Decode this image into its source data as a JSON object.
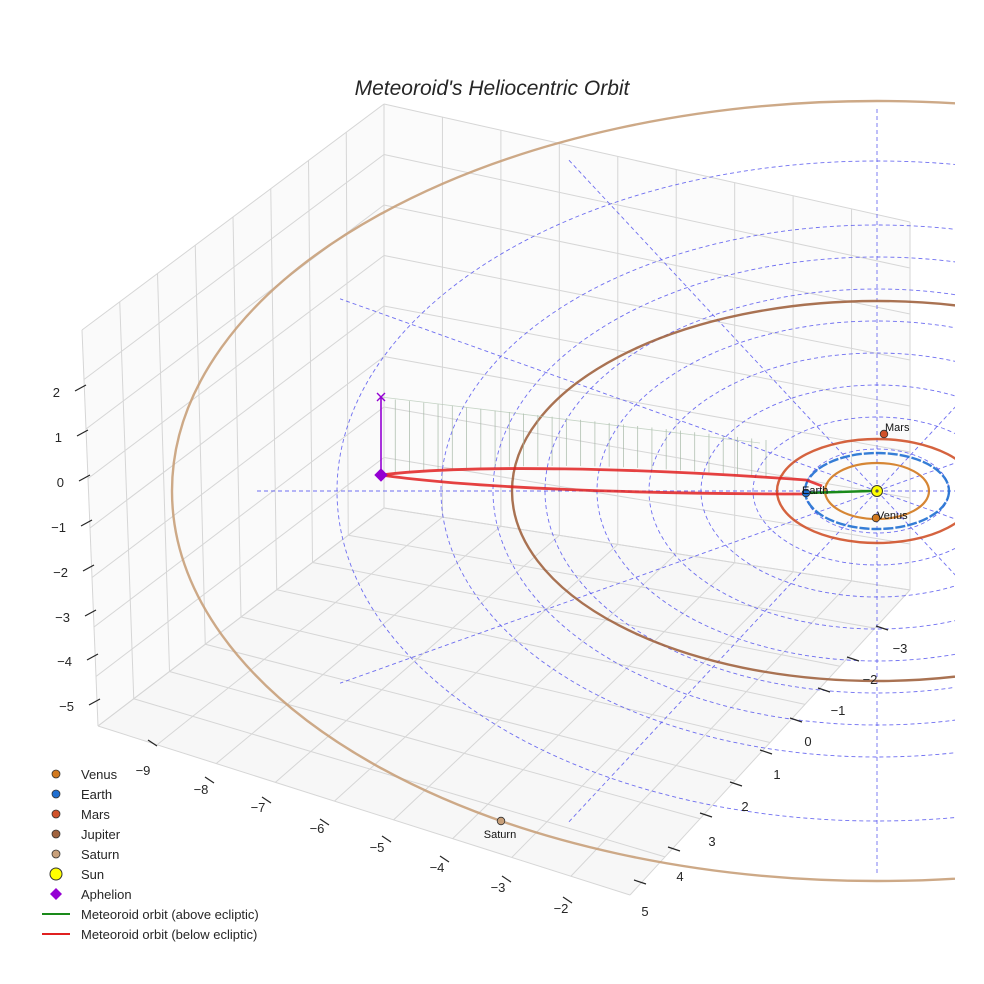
{
  "chart_data": {
    "type": "scatter",
    "title": "Meteoroid's Heliocentric Orbit",
    "xlabel": "",
    "ylabel": "",
    "zlabel": "",
    "x_ticks": [
      "−9",
      "−8",
      "−7",
      "−6",
      "−5",
      "−4",
      "−3",
      "−2"
    ],
    "y_ticks": [
      "−3",
      "−2",
      "−1",
      "0",
      "1",
      "2",
      "3",
      "4",
      "5"
    ],
    "z_ticks": [
      "2",
      "1",
      "0",
      "−1",
      "−2",
      "−3",
      "−4",
      "−5"
    ],
    "xlim": [
      -9.5,
      -1.5
    ],
    "ylim": [
      -3.5,
      5.5
    ],
    "zlim": [
      -5.5,
      2.5
    ],
    "grid": true,
    "legend_position": "bottom-left",
    "colors": {
      "venus": "#d2791e",
      "earth": "#1f6fd1",
      "mars": "#d0522a",
      "jupiter": "#a0633f",
      "saturn": "#c8a07a",
      "sun": "#ffff00",
      "aphelion": "#9400d3",
      "above": "#1a8a1a",
      "below": "#e02020",
      "grid_dashed": "#5555ee"
    },
    "planets": [
      {
        "name": "Venus",
        "label": "Venus",
        "distance_au": 0.72
      },
      {
        "name": "Earth",
        "label": "Earth",
        "distance_au": 1.0
      },
      {
        "name": "Mars",
        "label": "Mars",
        "distance_au": 1.52
      },
      {
        "name": "Jupiter",
        "label": "",
        "distance_au": 5.2
      },
      {
        "name": "Saturn",
        "label": "Saturn",
        "distance_au": 9.54
      }
    ],
    "sun": {
      "name": "Sun",
      "x": 0,
      "y": 0,
      "z": 0
    },
    "aphelion": {
      "name": "Aphelion",
      "x": -9.5,
      "y": 0.3,
      "z": 0,
      "marker_z": 1.6
    },
    "meteoroid_orbit": {
      "perihelion_au": 0.98,
      "aphelion_au": 9.5
    },
    "legend": [
      {
        "label": "Venus",
        "marker": "dot",
        "color_key": "venus"
      },
      {
        "label": "Earth",
        "marker": "dot",
        "color_key": "earth"
      },
      {
        "label": "Mars",
        "marker": "dot",
        "color_key": "mars"
      },
      {
        "label": "Jupiter",
        "marker": "dot",
        "color_key": "jupiter"
      },
      {
        "label": "Saturn",
        "marker": "dot",
        "color_key": "saturn"
      },
      {
        "label": "Sun",
        "marker": "bigdot",
        "color_key": "sun"
      },
      {
        "label": "Aphelion",
        "marker": "diamond",
        "color_key": "aphelion"
      },
      {
        "label": "Meteoroid orbit (above ecliptic)",
        "marker": "line",
        "color_key": "above"
      },
      {
        "label": "Meteoroid orbit (below ecliptic)",
        "marker": "line",
        "color_key": "below"
      }
    ]
  }
}
